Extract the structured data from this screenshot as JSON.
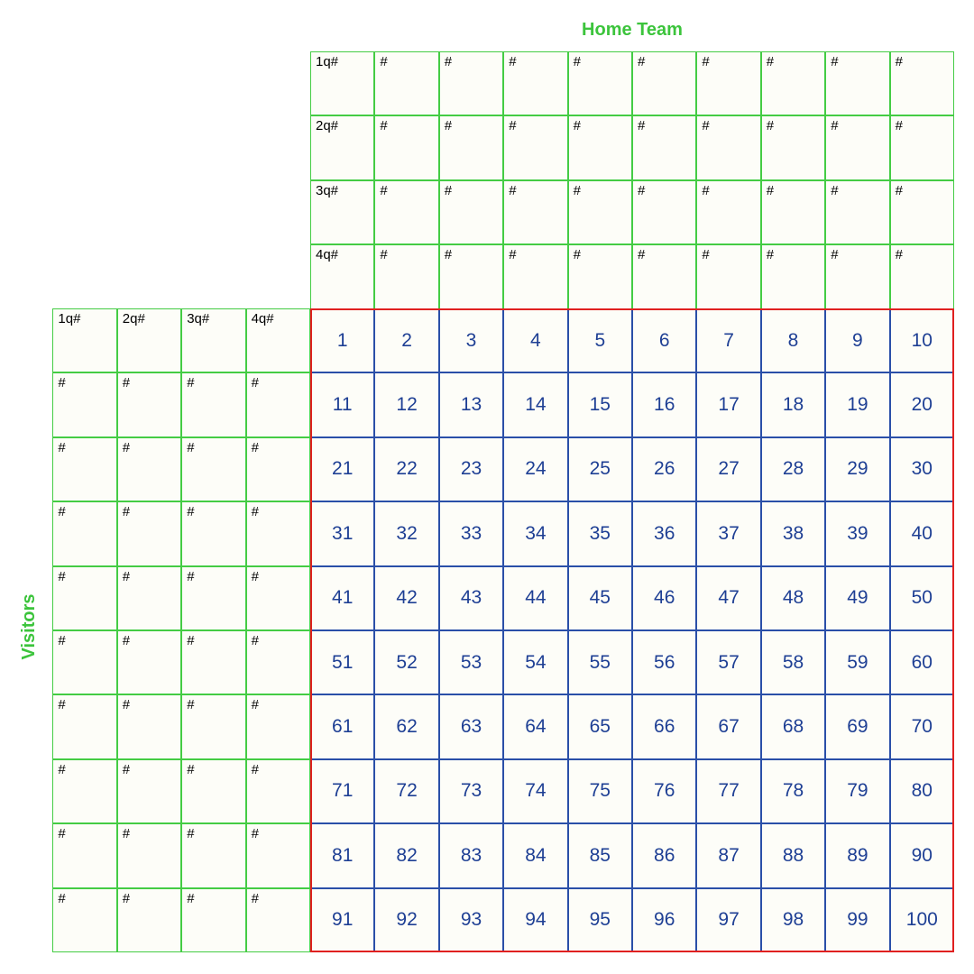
{
  "home_team_label": "Home Team",
  "visitors_label": "Visitors",
  "home_rows": [
    [
      "1q#",
      "#",
      "#",
      "#",
      "#",
      "#",
      "#",
      "#",
      "#",
      "#"
    ],
    [
      "2q#",
      "#",
      "#",
      "#",
      "#",
      "#",
      "#",
      "#",
      "#",
      "#"
    ],
    [
      "3q#",
      "#",
      "#",
      "#",
      "#",
      "#",
      "#",
      "#",
      "#",
      "#"
    ],
    [
      "4q#",
      "#",
      "#",
      "#",
      "#",
      "#",
      "#",
      "#",
      "#",
      "#"
    ]
  ],
  "visitor_rows": [
    [
      "1q#",
      "2q#",
      "3q#",
      "4q#"
    ],
    [
      "#",
      "#",
      "#",
      "#"
    ],
    [
      "#",
      "#",
      "#",
      "#"
    ],
    [
      "#",
      "#",
      "#",
      "#"
    ],
    [
      "#",
      "#",
      "#",
      "#"
    ],
    [
      "#",
      "#",
      "#",
      "#"
    ],
    [
      "#",
      "#",
      "#",
      "#"
    ],
    [
      "#",
      "#",
      "#",
      "#"
    ],
    [
      "#",
      "#",
      "#",
      "#"
    ],
    [
      "#",
      "#",
      "#",
      "#"
    ]
  ],
  "squares": [
    "1",
    "2",
    "3",
    "4",
    "5",
    "6",
    "7",
    "8",
    "9",
    "10",
    "11",
    "12",
    "13",
    "14",
    "15",
    "16",
    "17",
    "18",
    "19",
    "20",
    "21",
    "22",
    "23",
    "24",
    "25",
    "26",
    "27",
    "28",
    "29",
    "30",
    "31",
    "32",
    "33",
    "34",
    "35",
    "36",
    "37",
    "38",
    "39",
    "40",
    "41",
    "42",
    "43",
    "44",
    "45",
    "46",
    "47",
    "48",
    "49",
    "50",
    "51",
    "52",
    "53",
    "54",
    "55",
    "56",
    "57",
    "58",
    "59",
    "60",
    "61",
    "62",
    "63",
    "64",
    "65",
    "66",
    "67",
    "68",
    "69",
    "70",
    "71",
    "72",
    "73",
    "74",
    "75",
    "76",
    "77",
    "78",
    "79",
    "80",
    "81",
    "82",
    "83",
    "84",
    "85",
    "86",
    "87",
    "88",
    "89",
    "90",
    "91",
    "92",
    "93",
    "94",
    "95",
    "96",
    "97",
    "98",
    "99",
    "100"
  ],
  "colors": {
    "header_green": "#44cc44",
    "title_green": "#3cc43c",
    "grid_blue": "#2a4fa8",
    "grid_border_red": "#e02020",
    "cell_fill": "#fdfdf8"
  }
}
